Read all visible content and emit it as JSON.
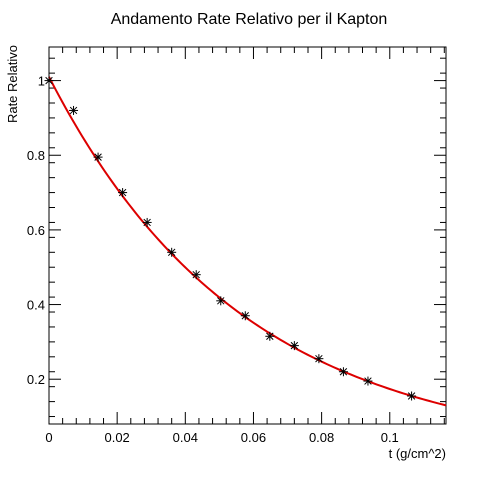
{
  "chart_data": {
    "type": "scatter",
    "title": "Andamento Rate Relativo per il Kapton",
    "xlabel": "t (g/cm^2)",
    "ylabel": "Rate Relativo",
    "xlim": [
      0,
      0.1165
    ],
    "ylim": [
      0.08,
      1.09
    ],
    "x_ticks": [
      "0",
      "0.02",
      "0.04",
      "0.06",
      "0.08",
      "0.1"
    ],
    "y_ticks": [
      "0.2",
      "0.4",
      "0.6",
      "0.8",
      "1"
    ],
    "x_tick_values": [
      0,
      0.02,
      0.04,
      0.06,
      0.08,
      0.1
    ],
    "y_tick_values": [
      0.2,
      0.4,
      0.6,
      0.8,
      1.0
    ],
    "grid": false,
    "legend": "none",
    "series": [
      {
        "type": "scatter",
        "marker": "star",
        "color": "#000000",
        "x": [
          0,
          0.0072,
          0.0144,
          0.0216,
          0.0288,
          0.036,
          0.0432,
          0.0504,
          0.0576,
          0.0648,
          0.072,
          0.0792,
          0.0864,
          0.0936,
          0.1064
        ],
        "y": [
          1.0,
          0.92,
          0.795,
          0.7,
          0.62,
          0.54,
          0.48,
          0.41,
          0.37,
          0.315,
          0.29,
          0.255,
          0.22,
          0.195,
          0.155
        ]
      },
      {
        "type": "line",
        "color": "#dd0000",
        "fit": "exponential",
        "y0": 1.01,
        "decay": 17.6,
        "x_range": [
          0,
          0.1165
        ]
      }
    ]
  }
}
